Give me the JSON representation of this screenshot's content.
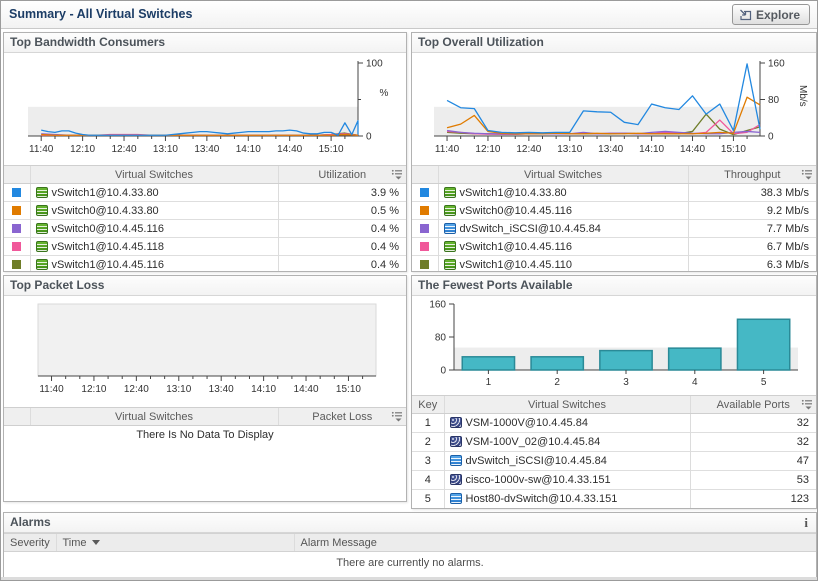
{
  "header": {
    "title": "Summary - All Virtual Switches",
    "explore_label": "Explore"
  },
  "panels": {
    "bandwidth": {
      "title": "Top Bandwidth Consumers",
      "table": {
        "name_col": "Virtual Switches",
        "value_col": "Utilization"
      },
      "rows": [
        {
          "color": "#2288e0",
          "icon": "vswitch",
          "name": "vSwitch1@10.4.33.80",
          "value": "3.9 %"
        },
        {
          "color": "#e07b00",
          "icon": "vswitch",
          "name": "vSwitch0@10.4.33.80",
          "value": "0.5 %"
        },
        {
          "color": "#8a65d0",
          "icon": "vswitch",
          "name": "vSwitch0@10.4.45.116",
          "value": "0.4 %"
        },
        {
          "color": "#f0589a",
          "icon": "vswitch",
          "name": "vSwitch1@10.4.45.118",
          "value": "0.4 %"
        },
        {
          "color": "#6f7d28",
          "icon": "vswitch",
          "name": "vSwitch1@10.4.45.116",
          "value": "0.4 %"
        }
      ]
    },
    "utilization": {
      "title": "Top Overall Utilization",
      "table": {
        "name_col": "Virtual Switches",
        "value_col": "Throughput"
      },
      "rows": [
        {
          "color": "#2288e0",
          "icon": "vswitch",
          "name": "vSwitch1@10.4.33.80",
          "value": "38.3 Mb/s"
        },
        {
          "color": "#e07b00",
          "icon": "vswitch",
          "name": "vSwitch0@10.4.45.116",
          "value": "9.2 Mb/s"
        },
        {
          "color": "#8a65d0",
          "icon": "dvswitch",
          "name": "dvSwitch_iSCSI@10.4.45.84",
          "value": "7.7 Mb/s"
        },
        {
          "color": "#f0589a",
          "icon": "vswitch",
          "name": "vSwitch1@10.4.45.116",
          "value": "6.7 Mb/s"
        },
        {
          "color": "#6f7d28",
          "icon": "vswitch",
          "name": "vSwitch1@10.4.45.110",
          "value": "6.3 Mb/s"
        }
      ]
    },
    "packet_loss": {
      "title": "Top Packet Loss",
      "table": {
        "name_col": "Virtual Switches",
        "value_col": "Packet Loss"
      },
      "no_data": "There Is No Data To Display"
    },
    "ports": {
      "title": "The Fewest Ports Available",
      "table": {
        "key_col": "Key",
        "name_col": "Virtual Switches",
        "value_col": "Available Ports"
      },
      "rows": [
        {
          "key": "1",
          "icon": "vsm",
          "name": "VSM-1000V@10.4.45.84",
          "value": "32"
        },
        {
          "key": "2",
          "icon": "vsm",
          "name": "VSM-100V_02@10.4.45.84",
          "value": "32"
        },
        {
          "key": "3",
          "icon": "dvswitch",
          "name": "dvSwitch_iSCSI@10.4.45.84",
          "value": "47"
        },
        {
          "key": "4",
          "icon": "vsm",
          "name": "cisco-1000v-sw@10.4.33.151",
          "value": "53"
        },
        {
          "key": "5",
          "icon": "dvswitch",
          "name": "Host80-dvSwitch@10.4.33.151",
          "value": "123"
        }
      ]
    },
    "alarms": {
      "title": "Alarms",
      "info_icon": "i",
      "severity_col": "Severity",
      "time_col": "Time",
      "message_col": "Alarm Message",
      "no_data": "There are currently no alarms."
    }
  },
  "chart_data": [
    {
      "type": "line",
      "title": "Top Bandwidth Consumers",
      "xlabel": "",
      "ylabel": "%",
      "ylabel_rotated": false,
      "x_tick_labels": [
        "11:40",
        "12:10",
        "12:40",
        "13:10",
        "13:40",
        "14:10",
        "14:40",
        "15:10"
      ],
      "ylim": [
        0,
        100
      ],
      "yticks": [
        {
          "v": 0,
          "label": "0"
        },
        {
          "v": 50,
          "label": ""
        },
        {
          "v": 100,
          "label": "100"
        }
      ],
      "plot_bg": "band",
      "legend_position": "table-below",
      "series": [
        {
          "name": "vSwitch1@10.4.33.80",
          "color": "#2288e0",
          "interval_min": 5,
          "values": [
            8,
            6,
            5,
            7,
            7,
            4,
            2,
            1,
            1,
            1,
            1,
            1,
            1,
            1,
            1,
            1,
            1,
            1,
            1,
            2,
            3,
            4,
            5,
            6,
            6,
            5,
            4,
            3,
            4,
            5,
            6,
            6,
            6,
            6,
            7,
            7,
            8,
            7,
            4,
            3,
            3,
            5,
            5,
            1,
            18,
            2,
            21,
            2
          ]
        },
        {
          "name": "vSwitch0@10.4.33.80",
          "color": "#e07b00",
          "interval_min": 10,
          "values": [
            2,
            1,
            1,
            1,
            1,
            1,
            1,
            1,
            1,
            1,
            1,
            1,
            1,
            1,
            1,
            1,
            1,
            1,
            1,
            1,
            1,
            1,
            2,
            1
          ]
        },
        {
          "name": "vSwitch0@10.4.45.116",
          "color": "#8a65d0",
          "interval_min": 10,
          "values": [
            3,
            2,
            1,
            1,
            1,
            1,
            1,
            1,
            1,
            1,
            1,
            1,
            1,
            1,
            1,
            1,
            1,
            1,
            1,
            1,
            1,
            1,
            2,
            1
          ]
        },
        {
          "name": "vSwitch1@10.4.45.118",
          "color": "#f0589a",
          "interval_min": 10,
          "values": [
            1,
            1,
            1,
            1,
            1,
            2,
            2,
            2,
            1,
            1,
            1,
            1,
            1,
            1,
            1,
            1,
            1,
            1,
            1,
            1,
            1,
            2,
            3,
            1
          ]
        },
        {
          "name": "vSwitch1@10.4.45.116",
          "color": "#6f7d28",
          "interval_min": 10,
          "values": [
            1,
            1,
            1,
            1,
            1,
            1,
            1,
            1,
            1,
            1,
            1,
            1,
            1,
            1,
            1,
            1,
            1,
            1,
            1,
            1,
            1,
            2,
            4,
            1
          ]
        }
      ]
    },
    {
      "type": "line",
      "title": "Top Overall Utilization",
      "xlabel": "",
      "ylabel": "Mb/s",
      "ylabel_rotated": true,
      "x_tick_labels": [
        "11:40",
        "12:10",
        "12:40",
        "13:10",
        "13:40",
        "14:10",
        "14:40",
        "15:10"
      ],
      "ylim": [
        0,
        160
      ],
      "yticks": [
        {
          "v": 0,
          "label": "0"
        },
        {
          "v": 80,
          "label": "80"
        },
        {
          "v": 160,
          "label": "160"
        }
      ],
      "plot_bg": "band",
      "legend_position": "table-below",
      "series": [
        {
          "name": "vSwitch1@10.4.33.80",
          "color": "#2288e0",
          "interval_min": 10,
          "values": [
            78,
            62,
            60,
            12,
            8,
            7,
            8,
            7,
            8,
            8,
            55,
            53,
            52,
            30,
            25,
            70,
            62,
            58,
            88,
            48,
            70,
            12,
            158,
            15
          ]
        },
        {
          "name": "vSwitch0@10.4.45.116",
          "color": "#e07b00",
          "interval_min": 10,
          "values": [
            18,
            26,
            45,
            10,
            6,
            5,
            5,
            5,
            6,
            5,
            5,
            6,
            5,
            5,
            6,
            5,
            5,
            5,
            5,
            6,
            8,
            6,
            85,
            68
          ]
        },
        {
          "name": "dvSwitch_iSCSI@10.4.45.84",
          "color": "#8a65d0",
          "interval_min": 10,
          "values": [
            12,
            8,
            6,
            5,
            5,
            5,
            5,
            6,
            5,
            5,
            8,
            5,
            6,
            6,
            5,
            8,
            10,
            8,
            6,
            5,
            5,
            8,
            10,
            8
          ]
        },
        {
          "name": "vSwitch1@10.4.45.116",
          "color": "#f0589a",
          "interval_min": 10,
          "values": [
            10,
            8,
            5,
            4,
            4,
            4,
            5,
            5,
            5,
            5,
            6,
            5,
            6,
            6,
            5,
            5,
            8,
            6,
            5,
            8,
            35,
            5,
            8,
            25
          ]
        },
        {
          "name": "vSwitch1@10.4.45.110",
          "color": "#6f7d28",
          "interval_min": 10,
          "values": [
            8,
            6,
            5,
            5,
            4,
            4,
            5,
            5,
            6,
            5,
            5,
            5,
            5,
            6,
            5,
            5,
            5,
            5,
            10,
            48,
            15,
            3,
            12,
            20
          ]
        }
      ]
    },
    {
      "type": "line",
      "title": "Top Packet Loss",
      "xlabel": "",
      "ylabel": "",
      "x_tick_labels": [
        "11:40",
        "12:10",
        "12:40",
        "13:10",
        "13:40",
        "14:10",
        "14:40",
        "15:10"
      ],
      "ylim": [
        0,
        1
      ],
      "yticks": [],
      "plot_bg": "full",
      "series": []
    },
    {
      "type": "bar",
      "title": "The Fewest Ports Available",
      "xlabel": "",
      "ylabel": "",
      "categories": [
        "1",
        "2",
        "3",
        "4",
        "5"
      ],
      "values": [
        32,
        32,
        47,
        53,
        123
      ],
      "ylim": [
        0,
        160
      ],
      "yticks": [
        {
          "v": 0,
          "label": "0"
        },
        {
          "v": 80,
          "label": "80"
        },
        {
          "v": 160,
          "label": "160"
        }
      ],
      "plot_bg": "band",
      "bar_color": "#45b8c5",
      "bar_border": "#2a8a97"
    }
  ]
}
